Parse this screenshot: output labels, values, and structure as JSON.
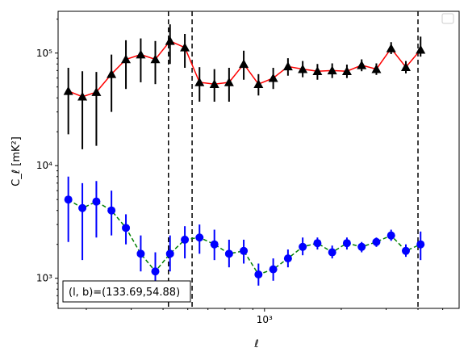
{
  "chart_data": {
    "type": "line",
    "title": "",
    "xlabel": "ℓ",
    "ylabel": "C_ℓ  [mK²]",
    "x_scale": "log",
    "y_scale": "log",
    "xlim": [
      155,
      5800
    ],
    "ylim": [
      540,
      235000
    ],
    "x_ticks": [
      {
        "value": 1000,
        "label": "10³"
      }
    ],
    "y_ticks": [
      {
        "value": 1000,
        "label": "10³"
      },
      {
        "value": 10000,
        "label": "10⁴"
      },
      {
        "value": 100000,
        "label": "10⁵"
      }
    ],
    "grid": false,
    "legend": {
      "position": "top-right",
      "entries": []
    },
    "annotation": "(l, b)=(133.69,54.88)",
    "vlines": [
      420,
      520,
      4000
    ],
    "series": [
      {
        "color": "#ff0000",
        "marker": "triangle",
        "marker_color": "#000000",
        "errorbar_color": "#000000",
        "linestyle": "solid",
        "x": [
          170,
          193,
          219,
          251,
          286,
          327,
          373,
          426,
          487,
          556,
          636,
          726,
          829,
          947,
          1082,
          1236,
          1412,
          1613,
          1843,
          2105,
          2405,
          2747,
          3138,
          3585,
          4095,
          4678,
          5344
        ],
        "y": [
          46000,
          41000,
          45000,
          65000,
          88000,
          97000,
          88000,
          128000,
          112000,
          55000,
          53000,
          55000,
          80000,
          53000,
          60000,
          76000,
          72000,
          69000,
          70000,
          69000,
          78000,
          72000,
          110000,
          75000,
          107000,
          null,
          null
        ],
        "err_low": [
          19000,
          14000,
          15000,
          30000,
          48000,
          55000,
          53000,
          80000,
          74000,
          37000,
          37000,
          37000,
          58000,
          42000,
          48000,
          63000,
          61000,
          58000,
          60000,
          60000,
          69000,
          64000,
          98000,
          66000,
          93000,
          null,
          null
        ],
        "err_high": [
          74000,
          69000,
          68000,
          97000,
          130000,
          135000,
          128000,
          180000,
          148000,
          75000,
          72000,
          74000,
          105000,
          65000,
          74000,
          90000,
          85000,
          80000,
          81000,
          79000,
          88000,
          81000,
          125000,
          85000,
          140000,
          null,
          null
        ]
      },
      {
        "color": "#008000",
        "marker": "circle",
        "marker_color": "#0000ff",
        "errorbar_color": "#0000ff",
        "linestyle": "dashed",
        "x": [
          170,
          193,
          219,
          251,
          286,
          327,
          373,
          426,
          487,
          556,
          636,
          726,
          829,
          947,
          1082,
          1236,
          1412,
          1613,
          1843,
          2105,
          2405,
          2747,
          3138,
          3585,
          4095,
          4678,
          5344
        ],
        "y": [
          5000,
          4200,
          4800,
          4000,
          2800,
          1650,
          1150,
          1650,
          2200,
          2300,
          2000,
          1650,
          1750,
          1080,
          1200,
          1500,
          1900,
          2050,
          1700,
          2050,
          1900,
          2100,
          2400,
          1750,
          2000,
          null,
          null
        ],
        "err_low": [
          2100,
          1450,
          2300,
          2400,
          2000,
          1150,
          830,
          1150,
          1500,
          1650,
          1450,
          1250,
          1350,
          860,
          950,
          1250,
          1600,
          1800,
          1500,
          1800,
          1700,
          1900,
          2150,
          1550,
          1450,
          null,
          null
        ],
        "err_high": [
          8000,
          7000,
          7300,
          6000,
          3700,
          2400,
          1700,
          2400,
          2900,
          3000,
          2700,
          2200,
          2200,
          1350,
          1500,
          1800,
          2300,
          2300,
          1950,
          2300,
          2100,
          2300,
          2700,
          2000,
          2600,
          null,
          null
        ]
      }
    ]
  }
}
